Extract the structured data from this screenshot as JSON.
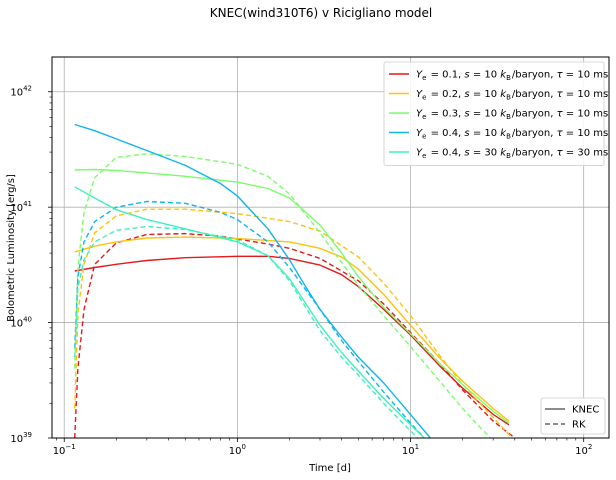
{
  "chart_data": {
    "type": "line",
    "title": "KNEC(wind310T6) v Ricigliano model",
    "xlabel": "Time [d]",
    "ylabel": "Bolometric Luminosity [erg/s]",
    "xscale": "log",
    "yscale": "log",
    "xlim": [
      0.085,
      140
    ],
    "ylim": [
      1e+39,
      2e+42
    ],
    "grid": true,
    "x_ticks": [
      {
        "value": 0.1,
        "base": "10",
        "exp": "−1"
      },
      {
        "value": 1,
        "base": "10",
        "exp": "0"
      },
      {
        "value": 10,
        "base": "10",
        "exp": "1"
      },
      {
        "value": 100,
        "base": "10",
        "exp": "2"
      }
    ],
    "y_ticks": [
      {
        "value": 1e+39,
        "base": "10",
        "exp": "39"
      },
      {
        "value": 1e+40,
        "base": "10",
        "exp": "40"
      },
      {
        "value": 1e+41,
        "base": "10",
        "exp": "41"
      },
      {
        "value": 1e+42,
        "base": "10",
        "exp": "42"
      }
    ],
    "legend_placement": "top-right",
    "legend": [
      {
        "label": "Ye = 0.1, s = 10 kB/baryon, τ = 10 ms",
        "color": "#e41a1c",
        "parts": [
          [
            "Y",
            "i"
          ],
          [
            "e",
            "sub"
          ],
          [
            " = 0.1, ",
            "n"
          ],
          [
            "s",
            "i"
          ],
          [
            " = 10 ",
            "n"
          ],
          [
            "k",
            "i"
          ],
          [
            "B",
            "sub"
          ],
          [
            "/baryon, ",
            "n"
          ],
          [
            "τ",
            "i"
          ],
          [
            " = 10 ms",
            "n"
          ]
        ]
      },
      {
        "label": "Ye = 0.2, s = 10 kB/baryon, τ = 10 ms",
        "color": "#ffc20e",
        "parts": [
          [
            "Y",
            "i"
          ],
          [
            "e",
            "sub"
          ],
          [
            " = 0.2, ",
            "n"
          ],
          [
            "s",
            "i"
          ],
          [
            " = 10 ",
            "n"
          ],
          [
            "k",
            "i"
          ],
          [
            "B",
            "sub"
          ],
          [
            "/baryon, ",
            "n"
          ],
          [
            "τ",
            "i"
          ],
          [
            " = 10 ms",
            "n"
          ]
        ]
      },
      {
        "label": "Ye = 0.3, s = 10 kB/baryon, τ = 10 ms",
        "color": "#7cfc6b",
        "parts": [
          [
            "Y",
            "i"
          ],
          [
            "e",
            "sub"
          ],
          [
            " = 0.3, ",
            "n"
          ],
          [
            "s",
            "i"
          ],
          [
            " = 10 ",
            "n"
          ],
          [
            "k",
            "i"
          ],
          [
            "B",
            "sub"
          ],
          [
            "/baryon, ",
            "n"
          ],
          [
            "τ",
            "i"
          ],
          [
            " = 10 ms",
            "n"
          ]
        ]
      },
      {
        "label": "Ye = 0.4, s = 10 kB/baryon, τ = 10 ms",
        "color": "#10b4f0",
        "parts": [
          [
            "Y",
            "i"
          ],
          [
            "e",
            "sub"
          ],
          [
            " = 0.4, ",
            "n"
          ],
          [
            "s",
            "i"
          ],
          [
            " = 10 ",
            "n"
          ],
          [
            "k",
            "i"
          ],
          [
            "B",
            "sub"
          ],
          [
            "/baryon, ",
            "n"
          ],
          [
            "τ",
            "i"
          ],
          [
            " = 10 ms",
            "n"
          ]
        ]
      },
      {
        "label": "Ye = 0.4, s = 30 kB/baryon, τ = 30 ms",
        "color": "#3ff0c0",
        "parts": [
          [
            "Y",
            "i"
          ],
          [
            "e",
            "sub"
          ],
          [
            " = 0.4, ",
            "n"
          ],
          [
            "s",
            "i"
          ],
          [
            " = 30 ",
            "n"
          ],
          [
            "k",
            "i"
          ],
          [
            "B",
            "sub"
          ],
          [
            "/baryon, ",
            "n"
          ],
          [
            "τ",
            "i"
          ],
          [
            " = 30 ms",
            "n"
          ]
        ]
      }
    ],
    "style_legend": {
      "placement": "bottom-right",
      "entries": [
        {
          "label": "KNEC",
          "dash": "solid",
          "color": "#666666"
        },
        {
          "label": "RK",
          "dash": "dashed",
          "color": "#666666"
        }
      ]
    },
    "series": [
      {
        "name": "Ye=0.1 KNEC",
        "color": "#e41a1c",
        "dash": "solid",
        "points": [
          [
            0.115,
            2.8e+40
          ],
          [
            0.15,
            3e+40
          ],
          [
            0.2,
            3.2e+40
          ],
          [
            0.3,
            3.45e+40
          ],
          [
            0.5,
            3.65e+40
          ],
          [
            1.0,
            3.75e+40
          ],
          [
            1.5,
            3.75e+40
          ],
          [
            2.0,
            3.6e+40
          ],
          [
            3.0,
            3.15e+40
          ],
          [
            4.0,
            2.6e+40
          ],
          [
            5.0,
            2.05e+40
          ],
          [
            7.0,
            1.3e+40
          ],
          [
            10.0,
            7.8e+39
          ],
          [
            15.0,
            4.1e+39
          ],
          [
            20.0,
            2.7e+39
          ],
          [
            30.0,
            1.6e+39
          ],
          [
            37.0,
            1.3e+39
          ]
        ]
      },
      {
        "name": "Ye=0.1 RK",
        "color": "#e41a1c",
        "dash": "dashed",
        "points": [
          [
            0.115,
            1e+39
          ],
          [
            0.12,
            4e+39
          ],
          [
            0.13,
            1.3e+40
          ],
          [
            0.15,
            3.2e+40
          ],
          [
            0.2,
            4.9e+40
          ],
          [
            0.3,
            5.8e+40
          ],
          [
            0.5,
            5.9e+40
          ],
          [
            0.8,
            5.6e+40
          ],
          [
            1.0,
            5.3e+40
          ],
          [
            1.5,
            4.8e+40
          ],
          [
            2.0,
            4.4e+40
          ],
          [
            3.0,
            3.6e+40
          ],
          [
            5.0,
            2.3e+40
          ],
          [
            7.0,
            1.45e+40
          ],
          [
            10.0,
            8.2e+39
          ],
          [
            15.0,
            4.3e+39
          ],
          [
            20.0,
            2.6e+39
          ],
          [
            30.0,
            1.4e+39
          ],
          [
            40.0,
            1e+39
          ]
        ]
      },
      {
        "name": "Ye=0.2 KNEC",
        "color": "#ffc20e",
        "dash": "solid",
        "points": [
          [
            0.115,
            4.1e+40
          ],
          [
            0.15,
            4.6e+40
          ],
          [
            0.2,
            5e+40
          ],
          [
            0.3,
            5.4e+40
          ],
          [
            0.5,
            5.5e+40
          ],
          [
            1.0,
            5.35e+40
          ],
          [
            2.0,
            5e+40
          ],
          [
            3.0,
            4.4e+40
          ],
          [
            4.0,
            3.7e+40
          ],
          [
            5.0,
            2.9e+40
          ],
          [
            7.0,
            1.75e+40
          ],
          [
            10.0,
            9.5e+39
          ],
          [
            15.0,
            4.8e+39
          ],
          [
            20.0,
            3.1e+39
          ],
          [
            30.0,
            1.8e+39
          ],
          [
            37.0,
            1.4e+39
          ]
        ]
      },
      {
        "name": "Ye=0.2 RK",
        "color": "#ffc20e",
        "dash": "dashed",
        "points": [
          [
            0.115,
            1.8e+39
          ],
          [
            0.12,
            1.2e+40
          ],
          [
            0.13,
            3.2e+40
          ],
          [
            0.15,
            6e+40
          ],
          [
            0.2,
            8.4e+40
          ],
          [
            0.3,
            9.6e+40
          ],
          [
            0.5,
            9.6e+40
          ],
          [
            1.0,
            8.8e+40
          ],
          [
            2.0,
            7.5e+40
          ],
          [
            3.0,
            6.2e+40
          ],
          [
            5.0,
            3.7e+40
          ],
          [
            7.0,
            2.2e+40
          ],
          [
            10.0,
            1.15e+40
          ],
          [
            15.0,
            5e+39
          ],
          [
            20.0,
            2.9e+39
          ],
          [
            30.0,
            1.5e+39
          ],
          [
            40.0,
            9.5e+38
          ]
        ]
      },
      {
        "name": "Ye=0.3 KNEC",
        "color": "#7cfc6b",
        "dash": "solid",
        "points": [
          [
            0.115,
            2.1e+41
          ],
          [
            0.15,
            2.12e+41
          ],
          [
            0.2,
            2.08e+41
          ],
          [
            0.3,
            1.98e+41
          ],
          [
            0.5,
            1.85e+41
          ],
          [
            1.0,
            1.65e+41
          ],
          [
            1.5,
            1.45e+41
          ],
          [
            2.0,
            1.2e+41
          ],
          [
            3.0,
            7e+40
          ],
          [
            4.0,
            4e+40
          ],
          [
            5.0,
            2.5e+40
          ],
          [
            7.0,
            1.35e+40
          ],
          [
            10.0,
            8e+39
          ],
          [
            15.0,
            4.3e+39
          ],
          [
            20.0,
            2.9e+39
          ],
          [
            30.0,
            1.7e+39
          ],
          [
            37.0,
            1.35e+39
          ]
        ]
      },
      {
        "name": "Ye=0.3 RK",
        "color": "#7cfc6b",
        "dash": "dashed",
        "points": [
          [
            0.115,
            4e+39
          ],
          [
            0.12,
            3e+40
          ],
          [
            0.13,
            9e+40
          ],
          [
            0.15,
            1.8e+41
          ],
          [
            0.2,
            2.7e+41
          ],
          [
            0.3,
            2.9e+41
          ],
          [
            0.5,
            2.75e+41
          ],
          [
            1.0,
            2.35e+41
          ],
          [
            1.5,
            1.85e+41
          ],
          [
            2.0,
            1.3e+41
          ],
          [
            3.0,
            6e+40
          ],
          [
            4.0,
            3.3e+40
          ],
          [
            5.0,
            2.1e+40
          ],
          [
            7.0,
            1.15e+40
          ],
          [
            10.0,
            6.2e+39
          ],
          [
            15.0,
            3e+39
          ],
          [
            20.0,
            1.8e+39
          ],
          [
            25.0,
            1.25e+39
          ],
          [
            30.0,
            9.5e+38
          ]
        ]
      },
      {
        "name": "Ye=0.4 s10 KNEC",
        "color": "#10b4f0",
        "dash": "solid",
        "points": [
          [
            0.115,
            5.2e+41
          ],
          [
            0.15,
            4.6e+41
          ],
          [
            0.2,
            3.9e+41
          ],
          [
            0.3,
            3.1e+41
          ],
          [
            0.5,
            2.3e+41
          ],
          [
            0.8,
            1.6e+41
          ],
          [
            1.0,
            1.25e+41
          ],
          [
            1.5,
            6.5e+40
          ],
          [
            2.0,
            3.5e+40
          ],
          [
            2.5,
            2e+40
          ],
          [
            3.0,
            1.3e+40
          ],
          [
            4.0,
            7.5e+39
          ],
          [
            5.0,
            5e+39
          ],
          [
            7.0,
            3e+39
          ],
          [
            10.0,
            1.6e+39
          ],
          [
            13.0,
            1e+39
          ]
        ]
      },
      {
        "name": "Ye=0.4 s10 RK",
        "color": "#10b4f0",
        "dash": "dashed",
        "points": [
          [
            0.115,
            6e+39
          ],
          [
            0.12,
            2.5e+40
          ],
          [
            0.13,
            5e+40
          ],
          [
            0.15,
            7.5e+40
          ],
          [
            0.2,
            1e+41
          ],
          [
            0.3,
            1.12e+41
          ],
          [
            0.5,
            1.08e+41
          ],
          [
            0.8,
            9e+40
          ],
          [
            1.0,
            7.8e+40
          ],
          [
            1.5,
            5e+40
          ],
          [
            2.0,
            3e+40
          ],
          [
            3.0,
            1.3e+40
          ],
          [
            4.0,
            7e+39
          ],
          [
            5.0,
            4.6e+39
          ],
          [
            7.0,
            2.5e+39
          ],
          [
            10.0,
            1.35e+39
          ],
          [
            12.0,
            1e+39
          ]
        ]
      },
      {
        "name": "Ye=0.4 s30 KNEC",
        "color": "#3ff0c0",
        "dash": "solid",
        "points": [
          [
            0.115,
            1.5e+41
          ],
          [
            0.15,
            1.2e+41
          ],
          [
            0.2,
            9.5e+40
          ],
          [
            0.3,
            7.8e+40
          ],
          [
            0.5,
            6.5e+40
          ],
          [
            1.0,
            5e+40
          ],
          [
            1.5,
            3.8e+40
          ],
          [
            2.0,
            2.4e+40
          ],
          [
            3.0,
            9.5e+39
          ],
          [
            4.0,
            5.5e+39
          ],
          [
            5.0,
            3.8e+39
          ],
          [
            7.0,
            2.2e+39
          ],
          [
            10.0,
            1.3e+39
          ],
          [
            12.0,
            1e+39
          ]
        ]
      },
      {
        "name": "Ye=0.4 s30 RK",
        "color": "#3ff0c0",
        "dash": "dashed",
        "points": [
          [
            0.115,
            5e+39
          ],
          [
            0.12,
            2e+40
          ],
          [
            0.13,
            3.5e+40
          ],
          [
            0.15,
            5e+40
          ],
          [
            0.2,
            6.3e+40
          ],
          [
            0.3,
            6.8e+40
          ],
          [
            0.5,
            6.4e+40
          ],
          [
            1.0,
            5.2e+40
          ],
          [
            1.5,
            3.8e+40
          ],
          [
            2.0,
            2.3e+40
          ],
          [
            3.0,
            8.5e+39
          ],
          [
            4.0,
            5e+39
          ],
          [
            5.0,
            3.5e+39
          ],
          [
            7.0,
            2e+39
          ],
          [
            10.0,
            1.15e+39
          ],
          [
            11.0,
            1e+39
          ]
        ]
      }
    ]
  }
}
